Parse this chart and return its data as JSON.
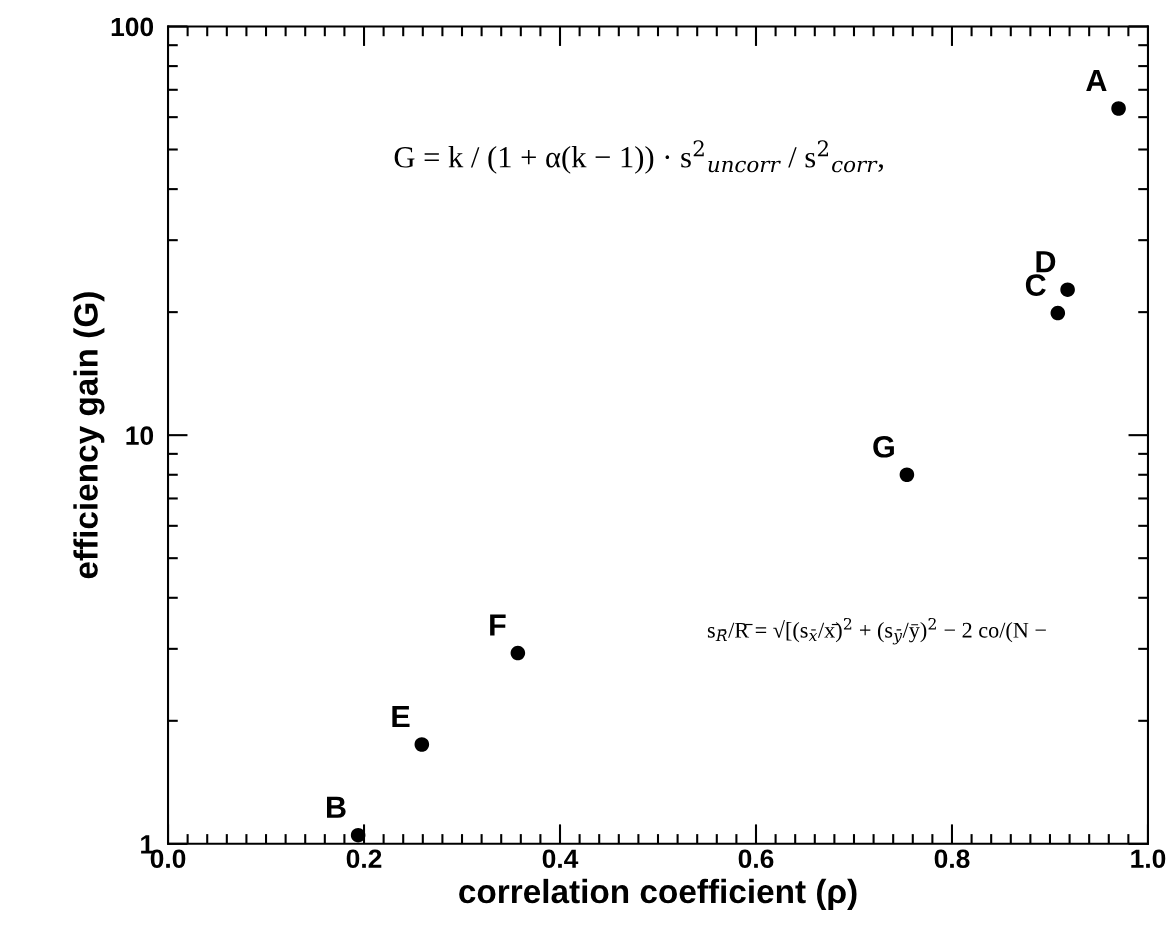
{
  "chart_data": {
    "type": "scatter",
    "xlabel": "correlation coefficient (ρ)",
    "ylabel": "efficiency gain (G)",
    "x": [
      0.97,
      0.194,
      0.908,
      0.918,
      0.259,
      0.357,
      0.754
    ],
    "values": [
      63,
      1.05,
      19.9,
      22.7,
      1.75,
      2.93,
      8.0
    ],
    "color": "#000000",
    "marker": "circle",
    "log": "y",
    "xlim": [
      0.0,
      1.0
    ],
    "xticks": [
      {
        "value": 0.0,
        "label": "0.0"
      },
      {
        "value": 0.2,
        "label": "0.2"
      },
      {
        "value": 0.4,
        "label": "0.4"
      },
      {
        "value": 0.6,
        "label": "0.6"
      },
      {
        "value": 0.8,
        "label": "0.8"
      },
      {
        "value": 1.0,
        "label": "1.0"
      }
    ],
    "ylim": [
      1,
      100
    ],
    "yticks": [
      1,
      10,
      100
    ],
    "grid": false,
    "legend": false,
    "annotations": [
      {
        "text": "A",
        "x": 0.97,
        "y": 63
      },
      {
        "text": "B",
        "x": 0.194,
        "y": 1.05
      },
      {
        "text": "C",
        "x": 0.908,
        "y": 19.9
      },
      {
        "text": "D",
        "x": 0.918,
        "y": 22.7
      },
      {
        "text": "E",
        "x": 0.259,
        "y": 1.75
      },
      {
        "text": "F",
        "x": 0.357,
        "y": 2.93
      },
      {
        "text": "G",
        "x": 0.754,
        "y": 8.0
      },
      "G = k / (1 + α(k − 1)) · s$^{2}$$_{uncorr}$ / s$^{2}$$_{corr}$,",
      "s$_{R̄}$/R̄ = √[(s$_{x̄}$/x̄)$^{2}$ + (s$_{ȳ}$/ȳ)$^{2}$ − 2 co/(N −"
    ]
  }
}
